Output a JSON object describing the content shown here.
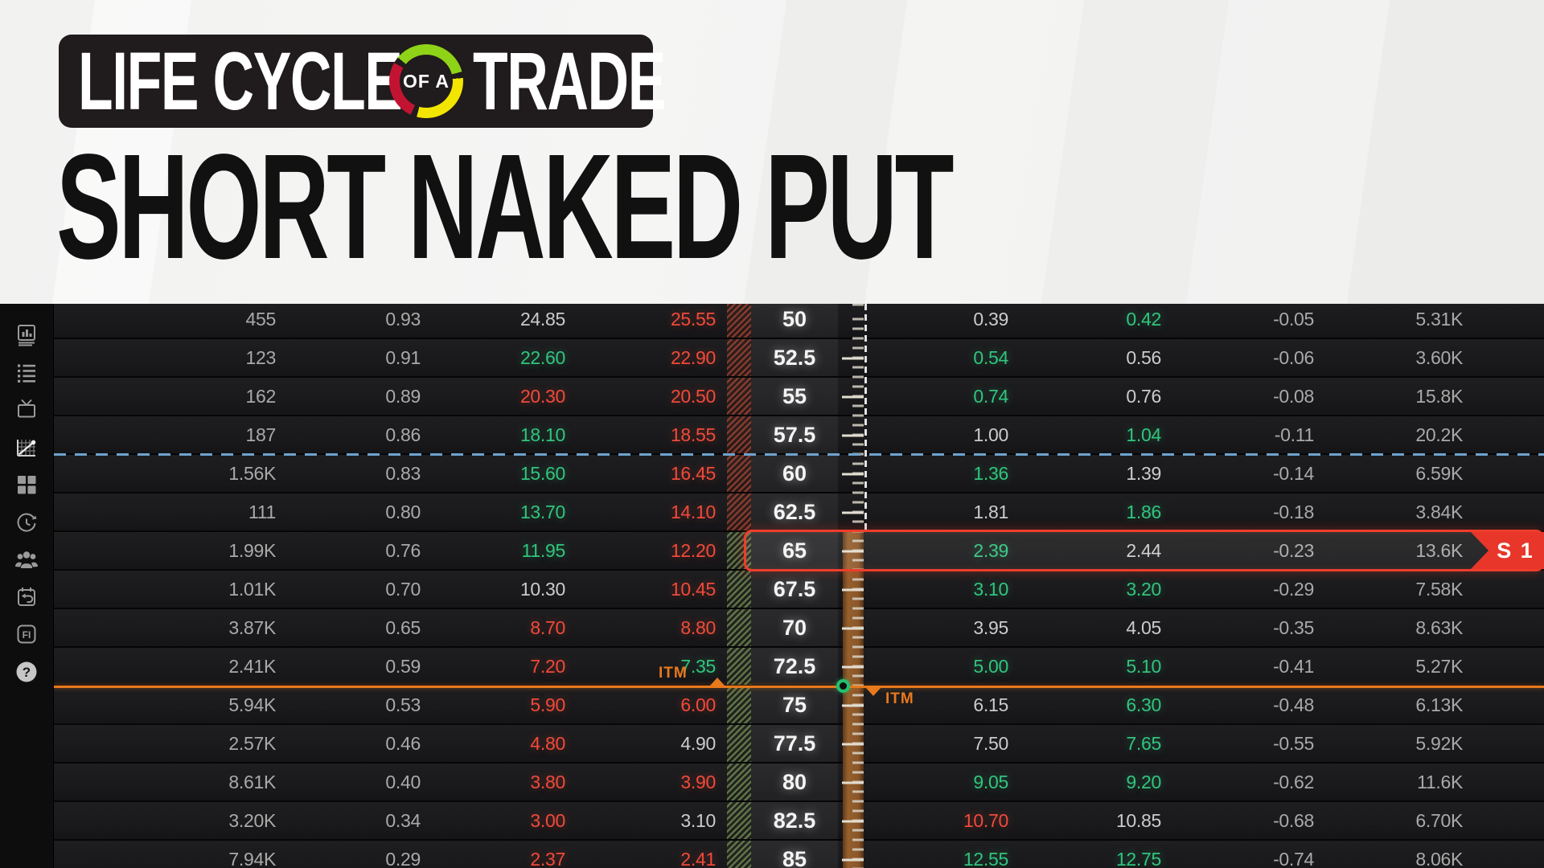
{
  "header": {
    "logo_part1": "LIFE CYCLE",
    "logo_ring_text": "OF A",
    "logo_part2": "TRADE",
    "title": "SHORT NAKED PUT"
  },
  "sidebar": {
    "icons": [
      "chart-book",
      "watchlist",
      "tv",
      "curve-analysis",
      "grid",
      "history",
      "follow-traders",
      "journal",
      "fi",
      "help"
    ],
    "fi_label": "FI",
    "help_label": "?"
  },
  "table": {
    "rows": [
      {
        "call_volume": "455",
        "call_delta": "0.93",
        "call_bid": "24.85",
        "call_bid_color": "gray",
        "call_ask": "25.55",
        "call_ask_color": "red",
        "strike": "50",
        "put_bid": "0.39",
        "put_bid_color": "gray",
        "put_ask": "0.42",
        "put_ask_color": "green",
        "put_delta": "-0.05",
        "put_volume": "5.31K",
        "selected": false
      },
      {
        "call_volume": "123",
        "call_delta": "0.91",
        "call_bid": "22.60",
        "call_bid_color": "green",
        "call_ask": "22.90",
        "call_ask_color": "red",
        "strike": "52.5",
        "put_bid": "0.54",
        "put_bid_color": "green",
        "put_ask": "0.56",
        "put_ask_color": "gray",
        "put_delta": "-0.06",
        "put_volume": "3.60K",
        "selected": false
      },
      {
        "call_volume": "162",
        "call_delta": "0.89",
        "call_bid": "20.30",
        "call_bid_color": "red",
        "call_ask": "20.50",
        "call_ask_color": "red",
        "strike": "55",
        "put_bid": "0.74",
        "put_bid_color": "green",
        "put_ask": "0.76",
        "put_ask_color": "gray",
        "put_delta": "-0.08",
        "put_volume": "15.8K",
        "selected": false
      },
      {
        "call_volume": "187",
        "call_delta": "0.86",
        "call_bid": "18.10",
        "call_bid_color": "green",
        "call_ask": "18.55",
        "call_ask_color": "red",
        "strike": "57.5",
        "put_bid": "1.00",
        "put_bid_color": "gray",
        "put_ask": "1.04",
        "put_ask_color": "green",
        "put_delta": "-0.11",
        "put_volume": "20.2K",
        "selected": false
      },
      {
        "call_volume": "1.56K",
        "call_delta": "0.83",
        "call_bid": "15.60",
        "call_bid_color": "green",
        "call_ask": "16.45",
        "call_ask_color": "red",
        "strike": "60",
        "put_bid": "1.36",
        "put_bid_color": "green",
        "put_ask": "1.39",
        "put_ask_color": "gray",
        "put_delta": "-0.14",
        "put_volume": "6.59K",
        "selected": false
      },
      {
        "call_volume": "111",
        "call_delta": "0.80",
        "call_bid": "13.70",
        "call_bid_color": "green",
        "call_ask": "14.10",
        "call_ask_color": "red",
        "strike": "62.5",
        "put_bid": "1.81",
        "put_bid_color": "gray",
        "put_ask": "1.86",
        "put_ask_color": "green",
        "put_delta": "-0.18",
        "put_volume": "3.84K",
        "selected": false
      },
      {
        "call_volume": "1.99K",
        "call_delta": "0.76",
        "call_bid": "11.95",
        "call_bid_color": "green",
        "call_ask": "12.20",
        "call_ask_color": "red",
        "strike": "65",
        "put_bid": "2.39",
        "put_bid_color": "green",
        "put_ask": "2.44",
        "put_ask_color": "gray",
        "put_delta": "-0.23",
        "put_volume": "13.6K",
        "selected": true
      },
      {
        "call_volume": "1.01K",
        "call_delta": "0.70",
        "call_bid": "10.30",
        "call_bid_color": "gray",
        "call_ask": "10.45",
        "call_ask_color": "red",
        "strike": "67.5",
        "put_bid": "3.10",
        "put_bid_color": "green",
        "put_ask": "3.20",
        "put_ask_color": "green",
        "put_delta": "-0.29",
        "put_volume": "7.58K",
        "selected": false
      },
      {
        "call_volume": "3.87K",
        "call_delta": "0.65",
        "call_bid": "8.70",
        "call_bid_color": "red",
        "call_ask": "8.80",
        "call_ask_color": "red",
        "strike": "70",
        "put_bid": "3.95",
        "put_bid_color": "gray",
        "put_ask": "4.05",
        "put_ask_color": "gray",
        "put_delta": "-0.35",
        "put_volume": "8.63K",
        "selected": false
      },
      {
        "call_volume": "2.41K",
        "call_delta": "0.59",
        "call_bid": "7.20",
        "call_bid_color": "red",
        "call_ask": "7.35",
        "call_ask_color": "green",
        "strike": "72.5",
        "put_bid": "5.00",
        "put_bid_color": "green",
        "put_ask": "5.10",
        "put_ask_color": "green",
        "put_delta": "-0.41",
        "put_volume": "5.27K",
        "selected": false
      },
      {
        "call_volume": "5.94K",
        "call_delta": "0.53",
        "call_bid": "5.90",
        "call_bid_color": "red",
        "call_ask": "6.00",
        "call_ask_color": "red",
        "strike": "75",
        "put_bid": "6.15",
        "put_bid_color": "gray",
        "put_ask": "6.30",
        "put_ask_color": "green",
        "put_delta": "-0.48",
        "put_volume": "6.13K",
        "selected": false
      },
      {
        "call_volume": "2.57K",
        "call_delta": "0.46",
        "call_bid": "4.80",
        "call_bid_color": "red",
        "call_ask": "4.90",
        "call_ask_color": "gray",
        "strike": "77.5",
        "put_bid": "7.50",
        "put_bid_color": "gray",
        "put_ask": "7.65",
        "put_ask_color": "green",
        "put_delta": "-0.55",
        "put_volume": "5.92K",
        "selected": false
      },
      {
        "call_volume": "8.61K",
        "call_delta": "0.40",
        "call_bid": "3.80",
        "call_bid_color": "red",
        "call_ask": "3.90",
        "call_ask_color": "red",
        "strike": "80",
        "put_bid": "9.05",
        "put_bid_color": "green",
        "put_ask": "9.20",
        "put_ask_color": "green",
        "put_delta": "-0.62",
        "put_volume": "11.6K",
        "selected": false
      },
      {
        "call_volume": "3.20K",
        "call_delta": "0.34",
        "call_bid": "3.00",
        "call_bid_color": "red",
        "call_ask": "3.10",
        "call_ask_color": "gray",
        "strike": "82.5",
        "put_bid": "10.70",
        "put_bid_color": "red",
        "put_ask": "10.85",
        "put_ask_color": "gray",
        "put_delta": "-0.68",
        "put_volume": "6.70K",
        "selected": false
      },
      {
        "call_volume": "7.94K",
        "call_delta": "0.29",
        "call_bid": "2.37",
        "call_bid_color": "red",
        "call_ask": "2.41",
        "call_ask_color": "red",
        "strike": "85",
        "put_bid": "12.55",
        "put_bid_color": "green",
        "put_ask": "12.75",
        "put_ask_color": "green",
        "put_delta": "-0.74",
        "put_volume": "8.06K",
        "selected": false
      }
    ],
    "selected_row_badge": "S 1",
    "itm_label_left": "ITM",
    "itm_label_right": "ITM"
  },
  "colors": {
    "green": "#31c47d",
    "red": "#ef4a3a",
    "orange": "#e8791c",
    "blue_dashed": "#6fa3cf",
    "selection_red": "#ee3d2c",
    "brown_band": "#8a5628",
    "ring_green": "#8fd318",
    "ring_yellow": "#f2e500",
    "ring_red": "#c21432"
  }
}
